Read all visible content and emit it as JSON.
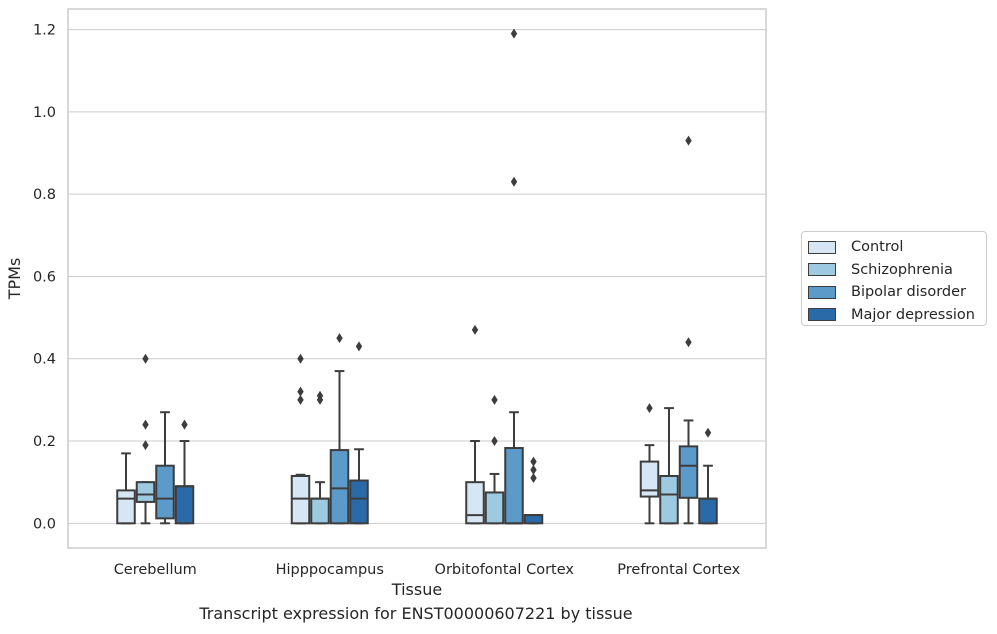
{
  "chart_data": {
    "type": "box",
    "categories": [
      "Cerebellum",
      "Hipppocampus",
      "Orbitofontal Cortex",
      "Prefrontal Cortex"
    ],
    "xlabel": "Tissue",
    "ylabel": "TPMs",
    "ylim": [
      -0.06,
      1.25
    ],
    "yticks": [
      "0.0",
      "0.2",
      "0.4",
      "0.6",
      "0.8",
      "1.0",
      "1.2"
    ],
    "grid": true,
    "legend_position": "right",
    "series": [
      {
        "name": "Control",
        "color": "#d6e6f4",
        "boxes": [
          {
            "whisker_low": 0.0,
            "q1": 0.0,
            "median": 0.06,
            "q3": 0.08,
            "whisker_high": 0.17,
            "outliers": []
          },
          {
            "whisker_low": 0.0,
            "q1": 0.0,
            "median": 0.06,
            "q3": 0.115,
            "whisker_high": 0.118,
            "outliers": [
              0.3,
              0.32,
              0.4
            ]
          },
          {
            "whisker_low": 0.0,
            "q1": 0.0,
            "median": 0.02,
            "q3": 0.1,
            "whisker_high": 0.2,
            "outliers": [
              0.47
            ]
          },
          {
            "whisker_low": 0.0,
            "q1": 0.065,
            "median": 0.08,
            "q3": 0.15,
            "whisker_high": 0.19,
            "outliers": [
              0.28
            ]
          }
        ]
      },
      {
        "name": "Schizophrenia",
        "color": "#9ecae1",
        "boxes": [
          {
            "whisker_low": 0.0,
            "q1": 0.052,
            "median": 0.07,
            "q3": 0.1,
            "whisker_high": 0.1,
            "outliers": [
              0.19,
              0.24,
              0.4
            ]
          },
          {
            "whisker_low": 0.0,
            "q1": 0.0,
            "median": 0.06,
            "q3": 0.06,
            "whisker_high": 0.1,
            "outliers": [
              0.3,
              0.31
            ]
          },
          {
            "whisker_low": 0.0,
            "q1": 0.0,
            "median": 0.075,
            "q3": 0.075,
            "whisker_high": 0.12,
            "outliers": [
              0.2,
              0.3
            ]
          },
          {
            "whisker_low": 0.0,
            "q1": 0.0,
            "median": 0.07,
            "q3": 0.115,
            "whisker_high": 0.28,
            "outliers": []
          }
        ]
      },
      {
        "name": "Bipolar disorder",
        "color": "#5b9ac9",
        "boxes": [
          {
            "whisker_low": 0.0,
            "q1": 0.012,
            "median": 0.06,
            "q3": 0.14,
            "whisker_high": 0.27,
            "outliers": []
          },
          {
            "whisker_low": 0.0,
            "q1": 0.0,
            "median": 0.085,
            "q3": 0.178,
            "whisker_high": 0.37,
            "outliers": [
              0.45
            ]
          },
          {
            "whisker_low": 0.0,
            "q1": 0.0,
            "median": 0.0,
            "q3": 0.183,
            "whisker_high": 0.27,
            "outliers": [
              0.83,
              1.19
            ]
          },
          {
            "whisker_low": 0.0,
            "q1": 0.062,
            "median": 0.14,
            "q3": 0.187,
            "whisker_high": 0.25,
            "outliers": [
              0.44,
              0.93
            ]
          }
        ]
      },
      {
        "name": "Major depression",
        "color": "#2b6aa8",
        "boxes": [
          {
            "whisker_low": 0.0,
            "q1": 0.0,
            "median": 0.09,
            "q3": 0.09,
            "whisker_high": 0.2,
            "outliers": [
              0.24
            ]
          },
          {
            "whisker_low": 0.0,
            "q1": 0.0,
            "median": 0.06,
            "q3": 0.104,
            "whisker_high": 0.18,
            "outliers": [
              0.43
            ]
          },
          {
            "whisker_low": 0.0,
            "q1": 0.0,
            "median": 0.02,
            "q3": 0.02,
            "whisker_high": 0.02,
            "outliers": [
              0.11,
              0.13,
              0.15
            ]
          },
          {
            "whisker_low": 0.0,
            "q1": 0.0,
            "median": 0.06,
            "q3": 0.06,
            "whisker_high": 0.14,
            "outliers": [
              0.22
            ]
          }
        ]
      }
    ]
  },
  "caption": "Transcript expression for ENST00000607221 by tissue"
}
